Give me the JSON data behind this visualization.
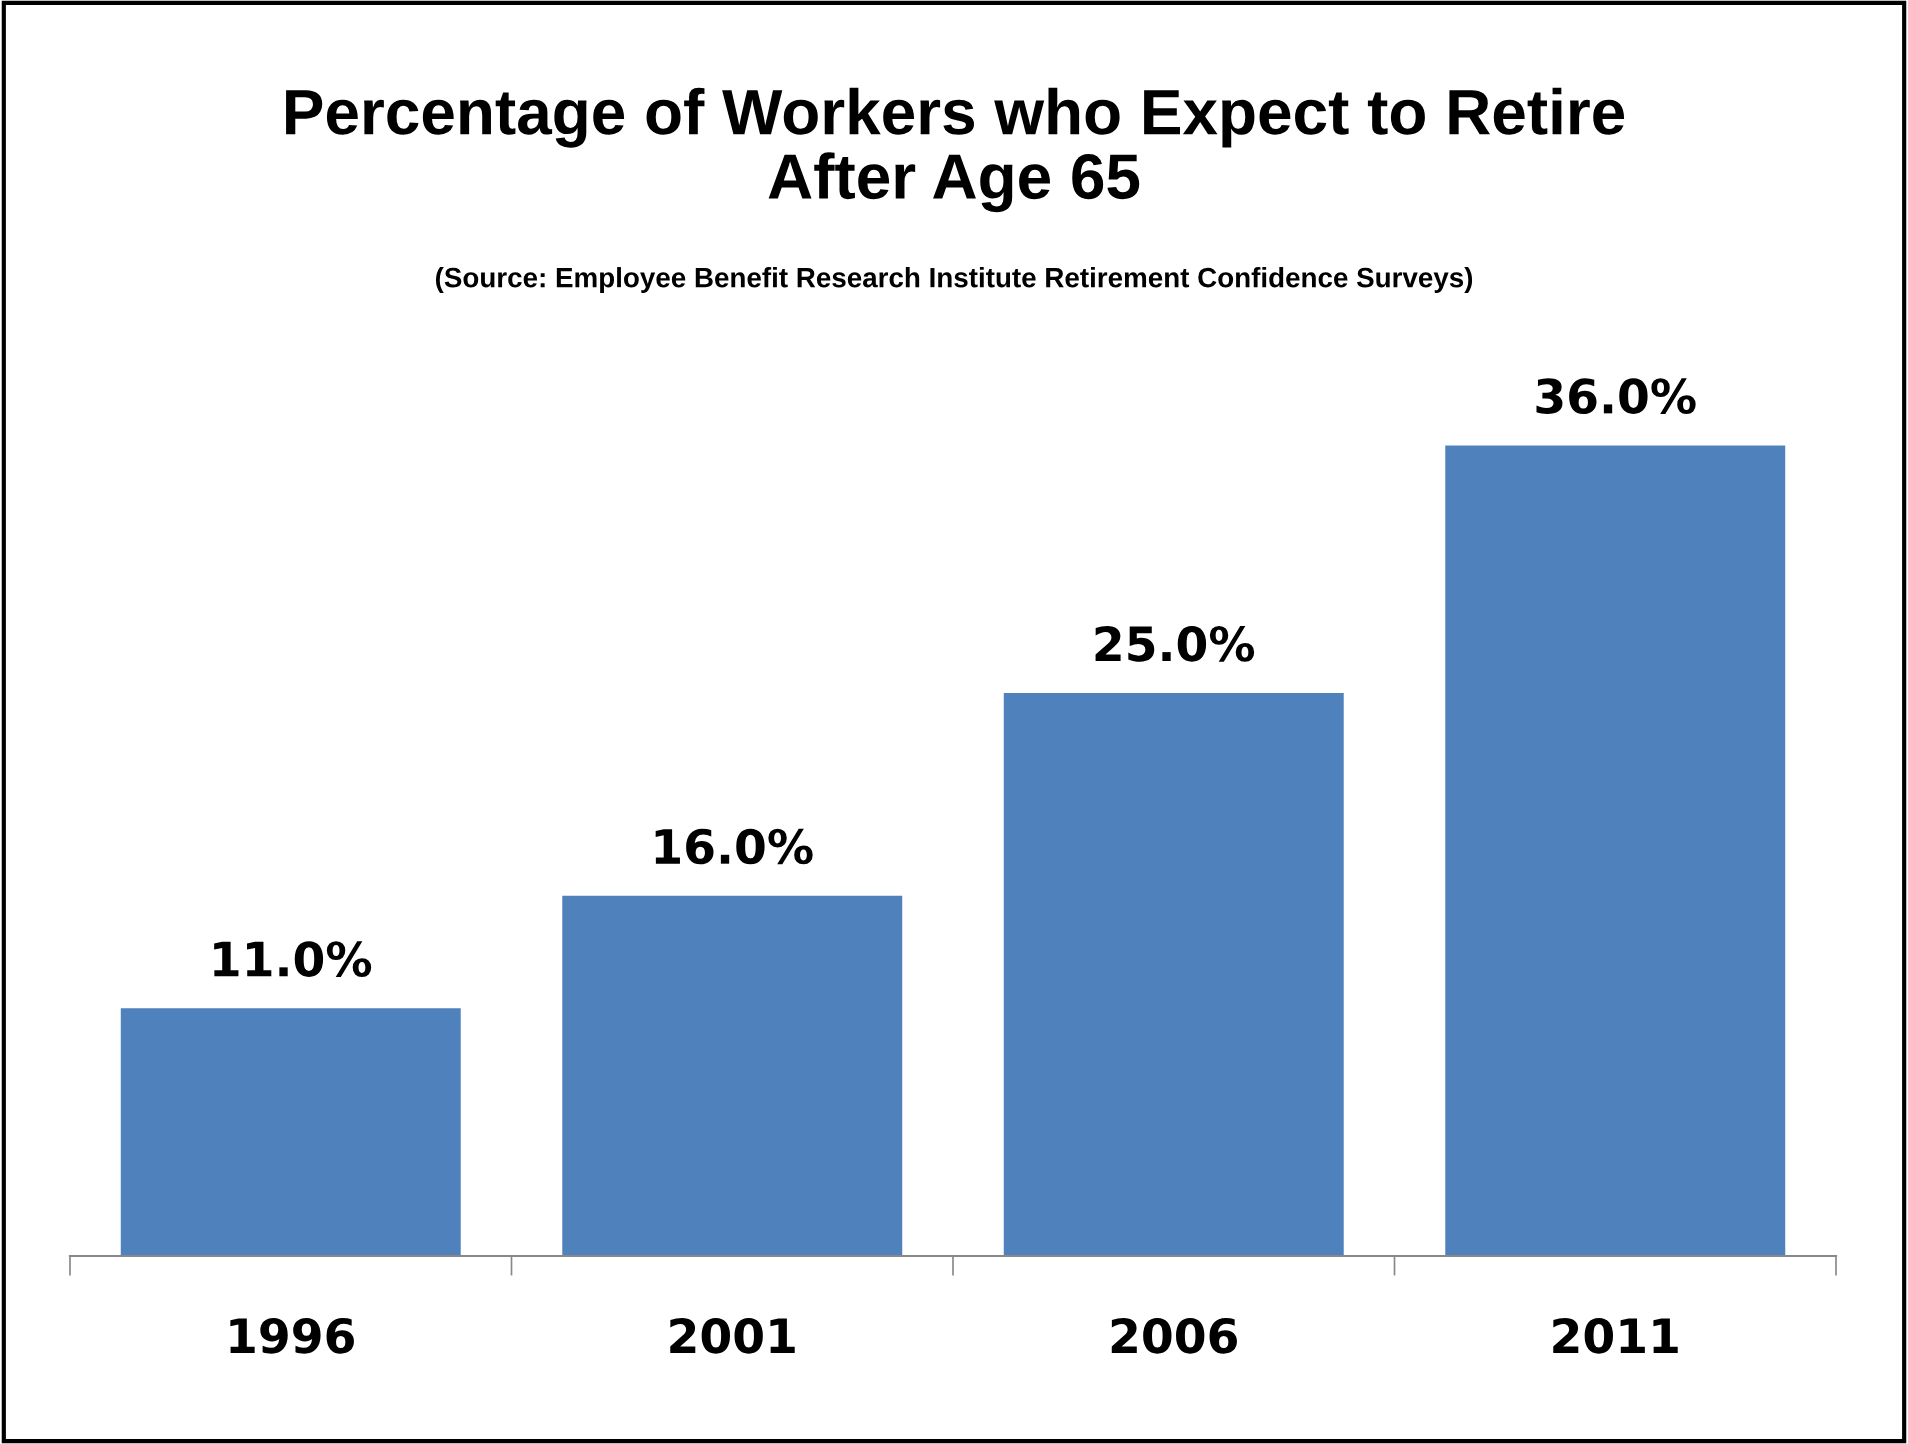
{
  "chart_data": {
    "type": "bar",
    "title": "Percentage of Workers who Expect to Retire\nAfter Age 65",
    "subtitle": "(Source: Employee Benefit Research Institute Retirement Confidence Surveys)",
    "categories": [
      "1996",
      "2001",
      "2006",
      "2011"
    ],
    "values": [
      11,
      16,
      25,
      36
    ],
    "value_labels": [
      "11.0%",
      "16.0%",
      "25.0%",
      "36.0%"
    ],
    "color": "#4f81bd",
    "grid": false,
    "legend": false
  }
}
